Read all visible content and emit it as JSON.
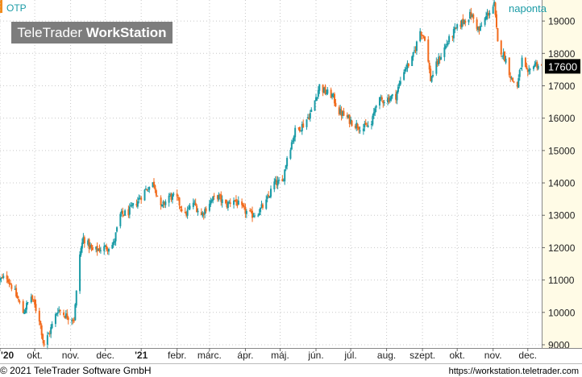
{
  "header": {
    "symbol": "OTP",
    "frequency": "naponta"
  },
  "logo": {
    "brand_light": "TeleTrader ",
    "brand_bold": "WorkStation"
  },
  "footer": {
    "copyright": "© 2021 TeleTrader Software GmbH",
    "url": "https://workstation.teletrader.com"
  },
  "colors": {
    "up": "#1a9ba6",
    "down": "#f26b1d",
    "last_bg": "#000000",
    "axis_bg": "#fffbe6",
    "accent": "#f28c1c"
  },
  "chart_data": {
    "type": "candlestick",
    "ylim": [
      8900,
      19650
    ],
    "y_ticks": [
      9000,
      10000,
      11000,
      12000,
      13000,
      14000,
      15000,
      16000,
      17000,
      18000,
      19000
    ],
    "x_ticks": [
      "'20",
      "okt.",
      "nov.",
      "dec.",
      "'21",
      "febr.",
      "márc.",
      "ápr.",
      "máj.",
      "jún.",
      "júl.",
      "aug.",
      "szept.",
      "okt.",
      "nov.",
      "dec."
    ],
    "last_value": 17600,
    "x_range": [
      "2020-09-01",
      "2021-12-13"
    ],
    "close_path": [
      [
        "2020-09-01",
        11000
      ],
      [
        "2020-09-07",
        11100
      ],
      [
        "2020-09-14",
        10600
      ],
      [
        "2020-09-21",
        10000
      ],
      [
        "2020-09-28",
        10500
      ],
      [
        "2020-10-05",
        9800
      ],
      [
        "2020-10-09",
        9000
      ],
      [
        "2020-10-14",
        9400
      ],
      [
        "2020-10-21",
        10100
      ],
      [
        "2020-10-28",
        9900
      ],
      [
        "2020-11-04",
        9800
      ],
      [
        "2020-11-09",
        11800
      ],
      [
        "2020-11-12",
        12300
      ],
      [
        "2020-11-20",
        11900
      ],
      [
        "2020-12-01",
        12000
      ],
      [
        "2020-12-08",
        12100
      ],
      [
        "2020-12-14",
        13000
      ],
      [
        "2020-12-21",
        13100
      ],
      [
        "2020-12-28",
        13400
      ],
      [
        "2021-01-05",
        13800
      ],
      [
        "2021-01-12",
        14000
      ],
      [
        "2021-01-18",
        13200
      ],
      [
        "2021-01-25",
        13600
      ],
      [
        "2021-02-01",
        13500
      ],
      [
        "2021-02-08",
        13000
      ],
      [
        "2021-02-15",
        13400
      ],
      [
        "2021-02-22",
        13000
      ],
      [
        "2021-03-01",
        13400
      ],
      [
        "2021-03-08",
        13600
      ],
      [
        "2021-03-15",
        13300
      ],
      [
        "2021-03-22",
        13500
      ],
      [
        "2021-03-29",
        13200
      ],
      [
        "2021-04-06",
        13000
      ],
      [
        "2021-04-12",
        13100
      ],
      [
        "2021-04-19",
        13400
      ],
      [
        "2021-04-26",
        14000
      ],
      [
        "2021-05-03",
        14000
      ],
      [
        "2021-05-07",
        14800
      ],
      [
        "2021-05-14",
        15600
      ],
      [
        "2021-05-21",
        15800
      ],
      [
        "2021-05-28",
        16200
      ],
      [
        "2021-06-04",
        17000
      ],
      [
        "2021-06-09",
        16800
      ],
      [
        "2021-06-15",
        16700
      ],
      [
        "2021-06-21",
        16200
      ],
      [
        "2021-06-28",
        16000
      ],
      [
        "2021-07-05",
        15800
      ],
      [
        "2021-07-12",
        15700
      ],
      [
        "2021-07-19",
        15800
      ],
      [
        "2021-07-23",
        16500
      ],
      [
        "2021-08-02",
        16600
      ],
      [
        "2021-08-09",
        16700
      ],
      [
        "2021-08-16",
        17500
      ],
      [
        "2021-08-23",
        17800
      ],
      [
        "2021-08-30",
        18700
      ],
      [
        "2021-09-03",
        18500
      ],
      [
        "2021-09-08",
        17200
      ],
      [
        "2021-09-15",
        17800
      ],
      [
        "2021-09-22",
        18300
      ],
      [
        "2021-09-29",
        18700
      ],
      [
        "2021-10-06",
        19000
      ],
      [
        "2021-10-13",
        19200
      ],
      [
        "2021-10-20",
        18700
      ],
      [
        "2021-10-27",
        19200
      ],
      [
        "2021-11-02",
        19500
      ],
      [
        "2021-11-05",
        18300
      ],
      [
        "2021-11-12",
        17800
      ],
      [
        "2021-11-17",
        17200
      ],
      [
        "2021-11-22",
        17000
      ],
      [
        "2021-11-26",
        17800
      ],
      [
        "2021-12-01",
        17300
      ],
      [
        "2021-12-06",
        17700
      ],
      [
        "2021-12-13",
        17600
      ]
    ]
  }
}
